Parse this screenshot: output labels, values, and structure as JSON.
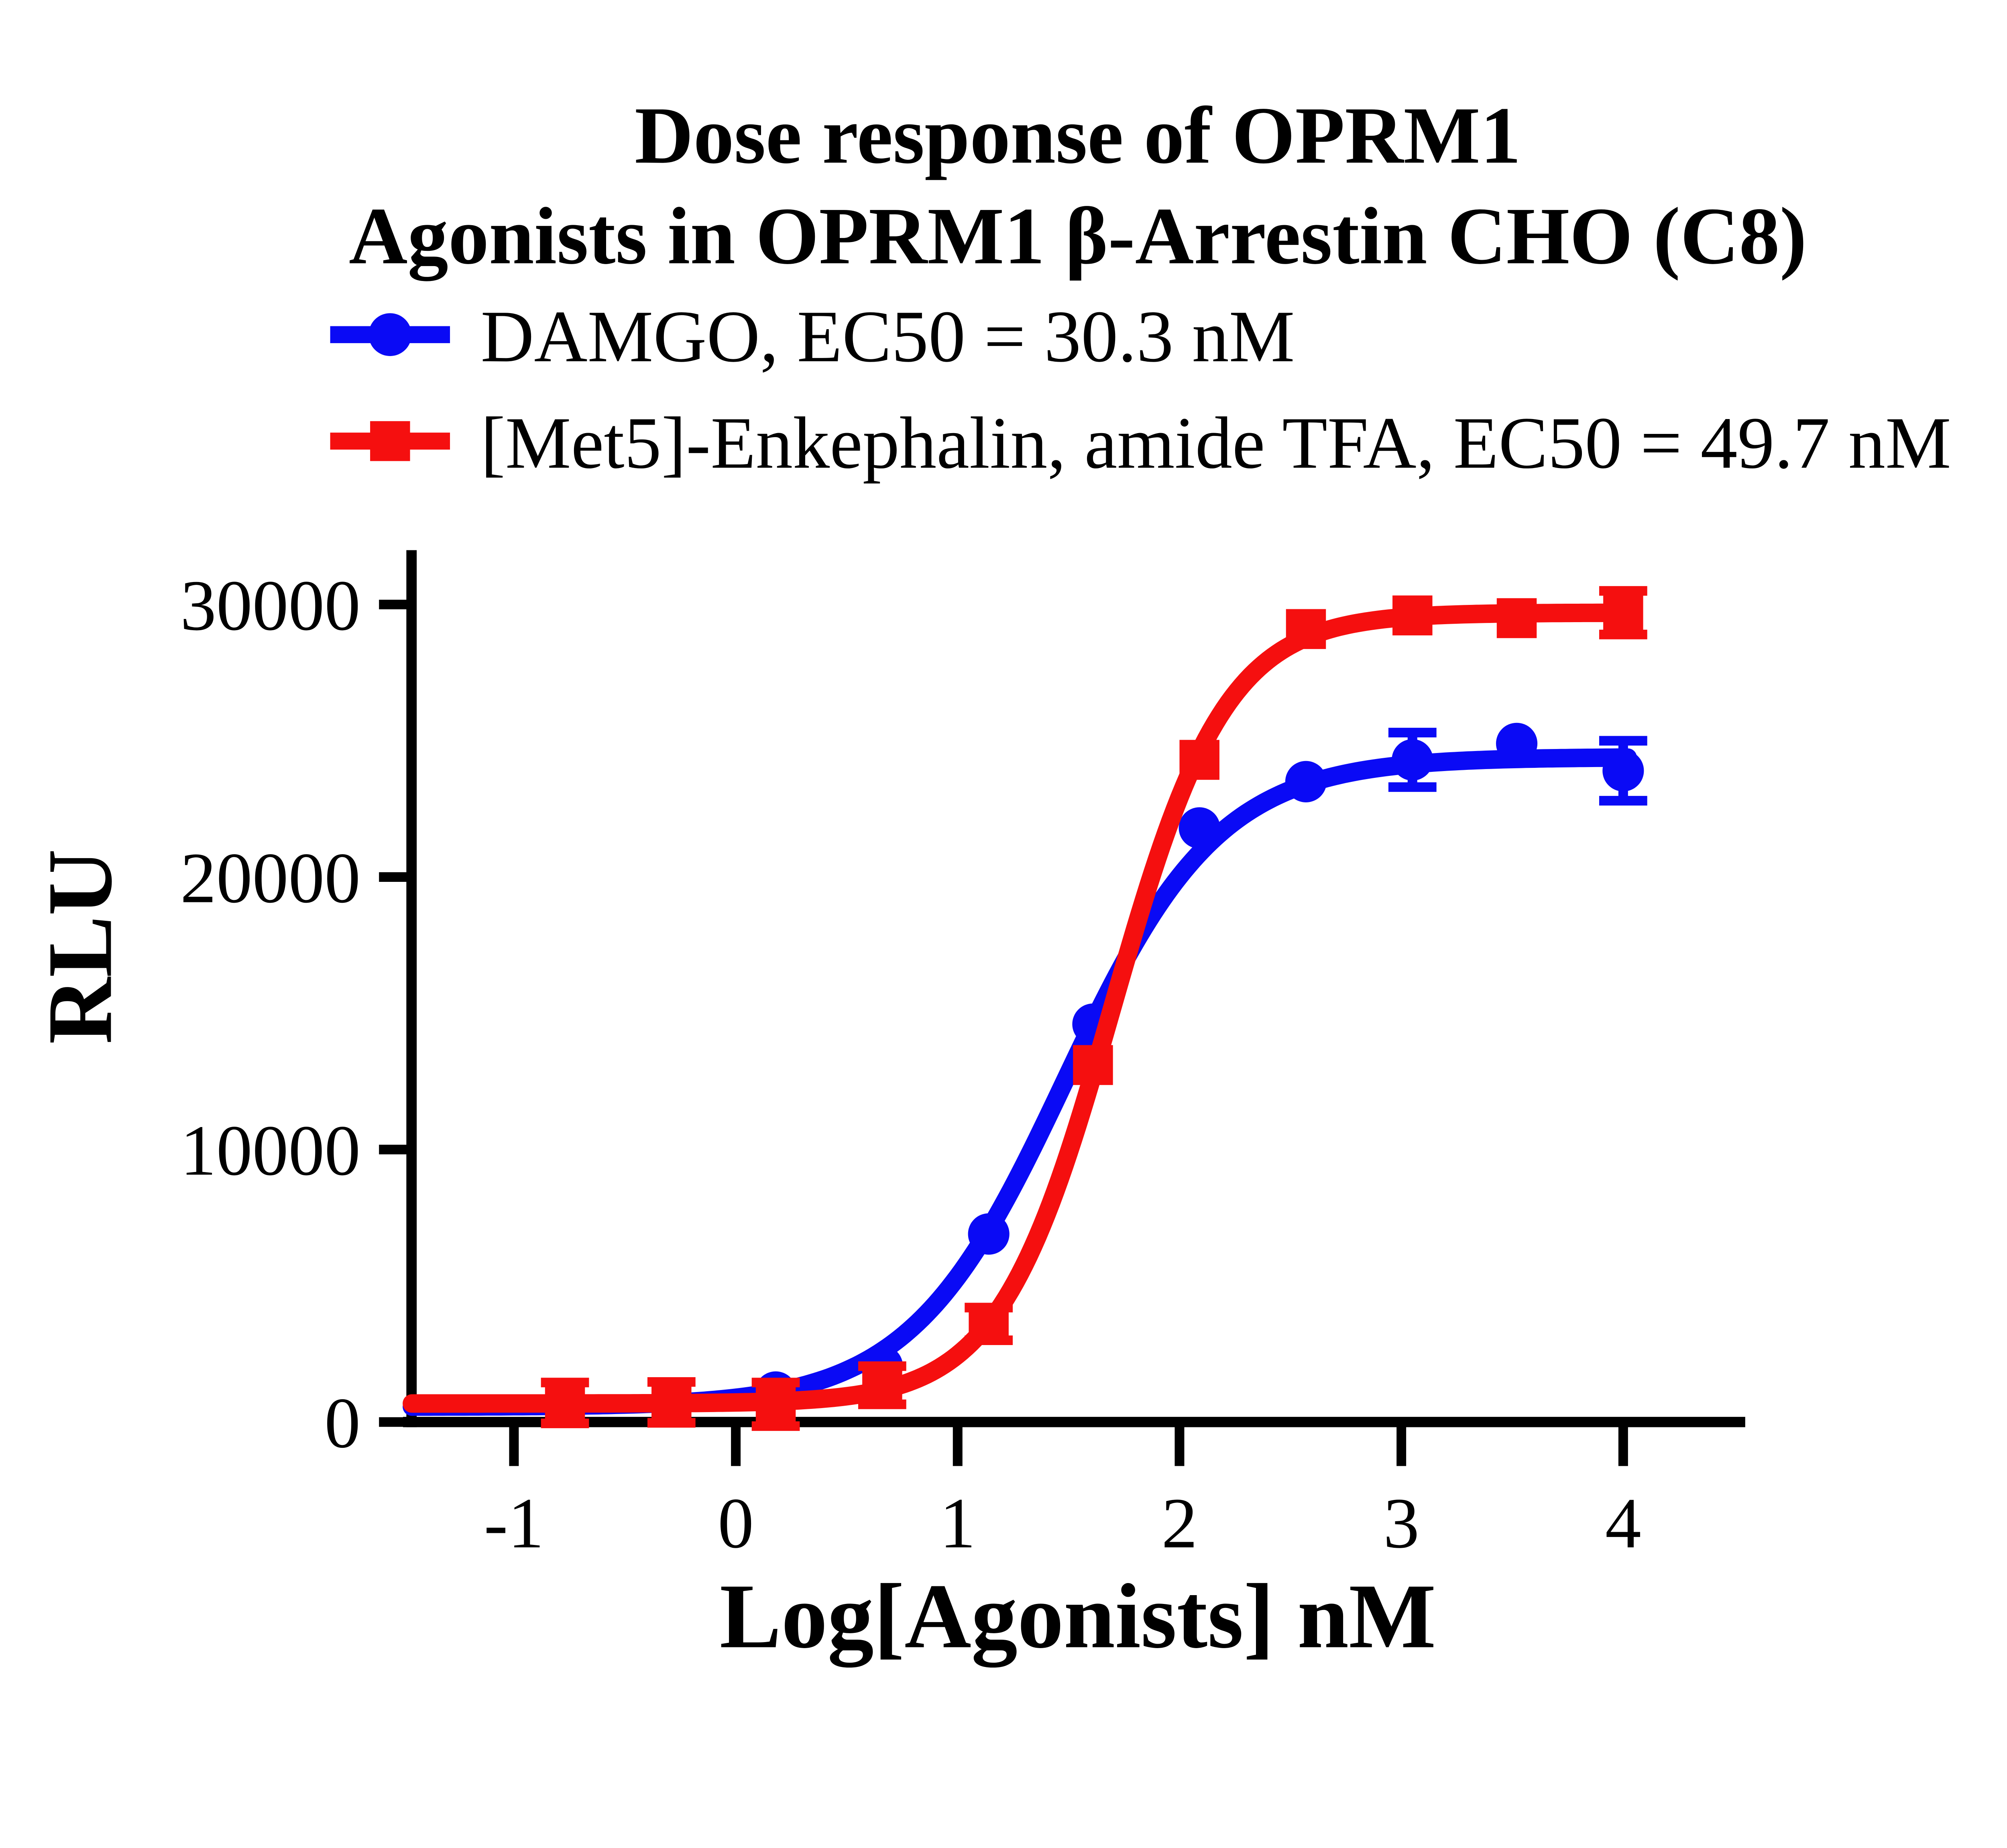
{
  "title": {
    "line1": "Dose response of OPRM1",
    "line2": "Agonists in OPRM1 β-Arrestin CHO (C8)"
  },
  "legend": {
    "items": [
      {
        "label": "DAMGO, EC50 = 30.3 nM",
        "color": "#0A0AF5",
        "marker": "circle"
      },
      {
        "label": "[Met5]-Enkephalin, amide TFA, EC50 = 49.7 nM",
        "color": "#F50F0F",
        "marker": "square"
      }
    ]
  },
  "axes": {
    "x": {
      "title": "Log[Agonists] nM"
    },
    "y": {
      "title": "RLU"
    }
  },
  "chart_data": {
    "type": "scatter",
    "subtype": "dose-response with 4PL fit curves",
    "title": "Dose response of OPRM1 Agonists in OPRM1 β-Arrestin CHO (C8)",
    "xlabel": "Log[Agonists] nM",
    "ylabel": "RLU",
    "xlim": [
      -1.5,
      4.55
    ],
    "ylim": [
      0,
      32000
    ],
    "x_ticks": [
      -1,
      0,
      1,
      2,
      3,
      4
    ],
    "y_ticks": [
      0,
      10000,
      20000,
      30000
    ],
    "grid": false,
    "legend_position": "top-left",
    "x_log": [
      -0.77,
      -0.29,
      0.18,
      0.66,
      1.14,
      1.61,
      2.09,
      2.57,
      3.05,
      3.52,
      4.0
    ],
    "series": [
      {
        "name": "DAMGO",
        "slug": "damgo",
        "ec50_label": "EC50 = 30.3 nM",
        "ec50_nM": 30.3,
        "color": "#0A0AF5",
        "marker": "circle",
        "values": [
          600,
          620,
          1100,
          2050,
          6900,
          14600,
          21800,
          23500,
          24300,
          24900,
          23900
        ],
        "errors": [
          0,
          0,
          0,
          0,
          0,
          0,
          0,
          0,
          1000,
          0,
          1100
        ],
        "fit_4pl": {
          "bottom": 560,
          "top": 24400,
          "logEC50": 1.4814,
          "hill": 1.25
        }
      },
      {
        "name": "[Met5]-Enkephalin, amide TFA",
        "slug": "met5-enkephalin",
        "ec50_label": "EC50 = 49.7 nM",
        "ec50_nM": 49.7,
        "color": "#F50F0F",
        "marker": "square",
        "values": [
          700,
          720,
          650,
          1350,
          3600,
          13100,
          24300,
          29100,
          29600,
          29500,
          29700
        ],
        "errors": [
          750,
          750,
          800,
          700,
          600,
          0,
          0,
          0,
          0,
          0,
          800
        ],
        "fit_4pl": {
          "bottom": 680,
          "top": 29700,
          "logEC50": 1.6964,
          "hill": 1.7
        }
      }
    ]
  }
}
